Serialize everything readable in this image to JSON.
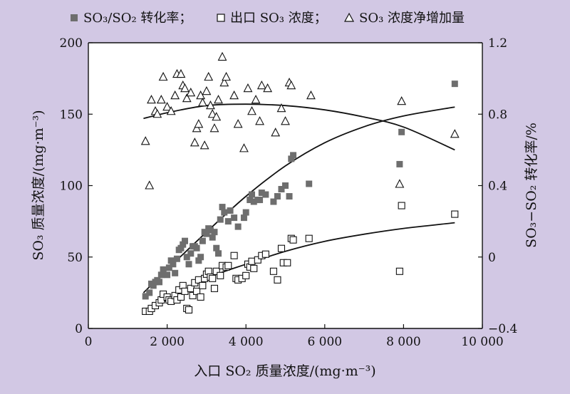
{
  "colors": {
    "background": "#d2c8e4",
    "plot_area": "#ffffff",
    "axis": "#111111",
    "filled_marker": "#6e6e6e",
    "open_marker_stroke": "#111111"
  },
  "legend": {
    "conv": "SO₃/SO₂ 转化率；",
    "outlet": "出口 SO₃ 浓度；",
    "increase": "SO₃ 浓度净增加量",
    "conv_icon": "filled-square-icon",
    "outlet_icon": "open-square-icon",
    "increase_icon": "open-triangle-icon"
  },
  "chart_data": {
    "type": "scatter",
    "xlabel": "入口 SO₂ 质量浓度/(mg·m⁻³)",
    "ylabel": "SO₃ 质量浓度/(mg·m⁻³)",
    "y2label": "SO₃−SO₂ 转化率/%",
    "xlim": [
      0,
      10000
    ],
    "ylim": [
      0,
      200
    ],
    "y2lim": [
      -0.4,
      1.2
    ],
    "xticks": [
      0,
      2000,
      4000,
      6000,
      8000,
      10000
    ],
    "xtick_labels": [
      "0",
      "2 000",
      "4 000",
      "6 000",
      "8 000",
      "10 000"
    ],
    "yticks": [
      0,
      50,
      100,
      150,
      200
    ],
    "ytick_labels": [
      "0",
      "50",
      "100",
      "150",
      "200"
    ],
    "y2ticks": [
      -0.4,
      0,
      0.4,
      0.8,
      1.2
    ],
    "y2tick_labels": [
      "−0.4",
      "0",
      "0.4",
      "0.8",
      "1.2"
    ],
    "grid": false,
    "legend_position": "top",
    "series": [
      {
        "name": "SO₃/SO₂ 转化率",
        "marker": "filled-square",
        "axis": "right",
        "points": [
          [
            1450,
            -0.22
          ],
          [
            1550,
            -0.2
          ],
          [
            1600,
            -0.15
          ],
          [
            1650,
            -0.16
          ],
          [
            1700,
            -0.14
          ],
          [
            1750,
            -0.13
          ],
          [
            1800,
            -0.14
          ],
          [
            1850,
            -0.1
          ],
          [
            1900,
            -0.07
          ],
          [
            2000,
            -0.1
          ],
          [
            2050,
            -0.06
          ],
          [
            2100,
            -0.02
          ],
          [
            2150,
            -0.04
          ],
          [
            2200,
            -0.09
          ],
          [
            2250,
            -0.01
          ],
          [
            2300,
            0.04
          ],
          [
            2350,
            0.05
          ],
          [
            2400,
            0.07
          ],
          [
            2450,
            0.09
          ],
          [
            2500,
            0.0
          ],
          [
            2550,
            -0.04
          ],
          [
            2600,
            0.02
          ],
          [
            2650,
            0.06
          ],
          [
            2700,
            0.06
          ],
          [
            2750,
            0.05
          ],
          [
            2800,
            -0.02
          ],
          [
            2850,
            0.0
          ],
          [
            2900,
            0.09
          ],
          [
            2950,
            0.14
          ],
          [
            3000,
            0.13
          ],
          [
            3050,
            0.16
          ],
          [
            3100,
            0.15
          ],
          [
            3150,
            0.11
          ],
          [
            3200,
            0.14
          ],
          [
            3250,
            0.05
          ],
          [
            3300,
            0.02
          ],
          [
            3350,
            0.21
          ],
          [
            3400,
            0.28
          ],
          [
            3450,
            0.25
          ],
          [
            3550,
            0.2
          ],
          [
            3600,
            0.26
          ],
          [
            3700,
            0.22
          ],
          [
            3800,
            0.17
          ],
          [
            3950,
            0.22
          ],
          [
            4000,
            0.25
          ],
          [
            4100,
            0.32
          ],
          [
            4150,
            0.35
          ],
          [
            4200,
            0.31
          ],
          [
            4300,
            0.32
          ],
          [
            4350,
            0.32
          ],
          [
            4400,
            0.36
          ],
          [
            4500,
            0.35
          ],
          [
            4700,
            0.31
          ],
          [
            4800,
            0.34
          ],
          [
            4900,
            0.38
          ],
          [
            5000,
            0.4
          ],
          [
            5100,
            0.34
          ],
          [
            5150,
            0.55
          ],
          [
            5200,
            0.57
          ],
          [
            5600,
            0.41
          ],
          [
            7900,
            0.52
          ],
          [
            7950,
            0.7
          ],
          [
            9300,
            0.97
          ]
        ]
      },
      {
        "name": "出口 SO₃ 浓度",
        "marker": "open-square",
        "axis": "left",
        "points": [
          [
            1450,
            12
          ],
          [
            1550,
            12
          ],
          [
            1600,
            14
          ],
          [
            1700,
            16
          ],
          [
            1800,
            18
          ],
          [
            1850,
            20
          ],
          [
            1900,
            24
          ],
          [
            2000,
            22
          ],
          [
            2050,
            20
          ],
          [
            2100,
            19
          ],
          [
            2200,
            23
          ],
          [
            2250,
            20
          ],
          [
            2300,
            27
          ],
          [
            2350,
            22
          ],
          [
            2400,
            30
          ],
          [
            2450,
            26
          ],
          [
            2500,
            14
          ],
          [
            2550,
            13
          ],
          [
            2600,
            28
          ],
          [
            2650,
            23
          ],
          [
            2700,
            32
          ],
          [
            2750,
            26
          ],
          [
            2800,
            34
          ],
          [
            2850,
            22
          ],
          [
            2900,
            30
          ],
          [
            2950,
            35
          ],
          [
            3000,
            38
          ],
          [
            3050,
            40
          ],
          [
            3100,
            36
          ],
          [
            3150,
            35
          ],
          [
            3200,
            28
          ],
          [
            3250,
            40
          ],
          [
            3350,
            37
          ],
          [
            3400,
            44
          ],
          [
            3500,
            43
          ],
          [
            3550,
            44
          ],
          [
            3700,
            51
          ],
          [
            3750,
            35
          ],
          [
            3800,
            34
          ],
          [
            3900,
            35
          ],
          [
            4000,
            37
          ],
          [
            4050,
            45
          ],
          [
            4100,
            43
          ],
          [
            4150,
            47
          ],
          [
            4200,
            42
          ],
          [
            4300,
            48
          ],
          [
            4400,
            51
          ],
          [
            4500,
            52
          ],
          [
            4700,
            40
          ],
          [
            4800,
            34
          ],
          [
            4900,
            56
          ],
          [
            4950,
            46
          ],
          [
            5050,
            46
          ],
          [
            5150,
            63
          ],
          [
            5200,
            62
          ],
          [
            5600,
            63
          ],
          [
            7900,
            40
          ],
          [
            7950,
            86
          ],
          [
            9300,
            80
          ]
        ]
      },
      {
        "name": "SO₃ 浓度净增加量",
        "marker": "open-triangle",
        "axis": "left",
        "points": [
          [
            1450,
            131
          ],
          [
            1550,
            100
          ],
          [
            1600,
            160
          ],
          [
            1700,
            152
          ],
          [
            1750,
            150
          ],
          [
            1850,
            160
          ],
          [
            1900,
            176
          ],
          [
            2000,
            155
          ],
          [
            2100,
            152
          ],
          [
            2200,
            163
          ],
          [
            2250,
            178
          ],
          [
            2350,
            178
          ],
          [
            2400,
            170
          ],
          [
            2450,
            168
          ],
          [
            2500,
            161
          ],
          [
            2600,
            165
          ],
          [
            2700,
            130
          ],
          [
            2750,
            140
          ],
          [
            2800,
            143
          ],
          [
            2850,
            163
          ],
          [
            2900,
            158
          ],
          [
            2950,
            128
          ],
          [
            3000,
            166
          ],
          [
            3050,
            176
          ],
          [
            3100,
            156
          ],
          [
            3150,
            150
          ],
          [
            3200,
            140
          ],
          [
            3250,
            148
          ],
          [
            3300,
            160
          ],
          [
            3400,
            190
          ],
          [
            3450,
            172
          ],
          [
            3500,
            176
          ],
          [
            3700,
            163
          ],
          [
            3800,
            143
          ],
          [
            3950,
            126
          ],
          [
            4050,
            168
          ],
          [
            4150,
            152
          ],
          [
            4250,
            160
          ],
          [
            4350,
            145
          ],
          [
            4400,
            170
          ],
          [
            4550,
            168
          ],
          [
            4750,
            137
          ],
          [
            4900,
            154
          ],
          [
            5000,
            145
          ],
          [
            5100,
            172
          ],
          [
            5150,
            170
          ],
          [
            5650,
            163
          ],
          [
            7900,
            101
          ],
          [
            7950,
            159
          ],
          [
            9300,
            136
          ]
        ]
      }
    ],
    "fit_lines": [
      {
        "name": "conv-fit",
        "axis": "right",
        "points": [
          [
            1400,
            -0.2
          ],
          [
            2000,
            -0.07
          ],
          [
            3000,
            0.14
          ],
          [
            4000,
            0.34
          ],
          [
            5000,
            0.51
          ],
          [
            6000,
            0.64
          ],
          [
            7000,
            0.73
          ],
          [
            8000,
            0.79
          ],
          [
            9300,
            0.84
          ]
        ]
      },
      {
        "name": "outlet-fit",
        "axis": "left",
        "points": [
          [
            1400,
            10
          ],
          [
            2000,
            20
          ],
          [
            3000,
            35
          ],
          [
            4000,
            45
          ],
          [
            5000,
            54
          ],
          [
            6000,
            61
          ],
          [
            7000,
            66
          ],
          [
            8000,
            70
          ],
          [
            9300,
            74
          ]
        ]
      },
      {
        "name": "increase-fit",
        "axis": "left",
        "points": [
          [
            1400,
            147
          ],
          [
            2000,
            151
          ],
          [
            3000,
            156
          ],
          [
            4000,
            157
          ],
          [
            5000,
            156
          ],
          [
            6000,
            153
          ],
          [
            7000,
            148
          ],
          [
            8000,
            141
          ],
          [
            9300,
            125
          ]
        ]
      }
    ]
  }
}
